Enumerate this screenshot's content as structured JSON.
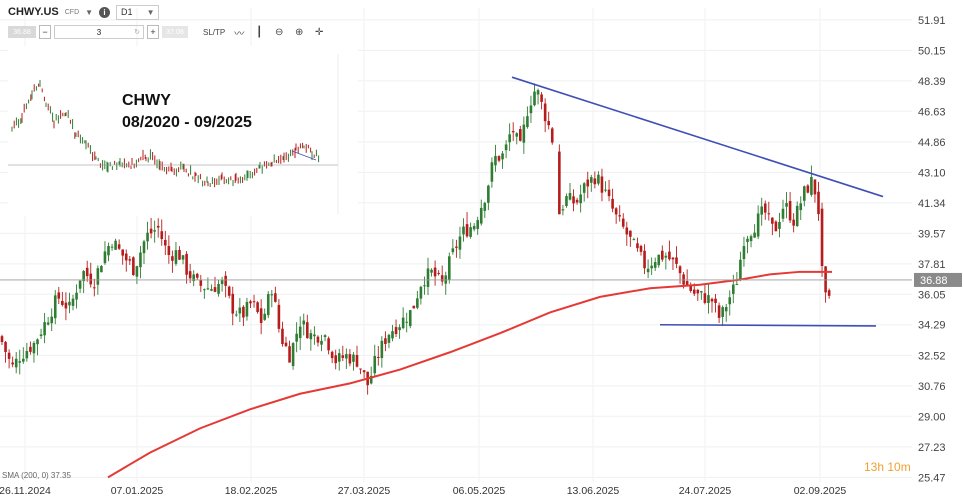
{
  "toolbar": {
    "symbol": "CHWY.US",
    "instrument_type": "CFD",
    "info_icon": "info-icon",
    "timeframe": "D1",
    "sell_price": "36.88",
    "buy_price": "37.08",
    "quantity": "3",
    "minus": "−",
    "plus": "+",
    "sltp_label": "SL/TP",
    "tools": [
      "line-chart-icon",
      "candle-chart-icon",
      "zoom-out-icon",
      "zoom-in-icon",
      "crosshair-icon"
    ]
  },
  "overlay": {
    "title": "CHWY",
    "subtitle": "08/2020 - 09/2025"
  },
  "countdown": "13h 10m",
  "indicator_label": "SMA (200, 0) 37.35",
  "colors": {
    "up": "#2e7d32",
    "down": "#b71c1c",
    "sma": "#e53935",
    "trendline": "#3f4fb5",
    "price_tag": "#8a8a8a",
    "countdown": "#f0a030"
  },
  "chart_data": {
    "type": "candlestick",
    "x_ticks": [
      "26.11.2024",
      "07.01.2025",
      "18.02.2025",
      "27.03.2025",
      "06.05.2025",
      "13.06.2025",
      "24.07.2025",
      "02.09.2025"
    ],
    "y_ticks": [
      25.47,
      27.23,
      29.0,
      30.76,
      32.52,
      34.29,
      36.05,
      37.81,
      39.57,
      41.34,
      43.1,
      44.86,
      46.63,
      48.39,
      50.15,
      51.91
    ],
    "ylim": [
      25.2,
      52.6
    ],
    "last_price": 36.88,
    "close_path": [
      [
        0,
        33.6
      ],
      [
        12,
        31.8
      ],
      [
        20,
        32.5
      ],
      [
        34,
        33.2
      ],
      [
        46,
        34.5
      ],
      [
        58,
        35.9
      ],
      [
        70,
        35.2
      ],
      [
        82,
        37.4
      ],
      [
        94,
        36.8
      ],
      [
        104,
        38.4
      ],
      [
        112,
        39.2
      ],
      [
        120,
        38.5
      ],
      [
        134,
        37.5
      ],
      [
        146,
        39.4
      ],
      [
        158,
        39.9
      ],
      [
        168,
        38.3
      ],
      [
        178,
        38.5
      ],
      [
        188,
        37.3
      ],
      [
        198,
        36.6
      ],
      [
        210,
        36.4
      ],
      [
        222,
        36.7
      ],
      [
        232,
        35.3
      ],
      [
        242,
        34.8
      ],
      [
        252,
        35.6
      ],
      [
        262,
        34.4
      ],
      [
        272,
        36.5
      ],
      [
        280,
        33.7
      ],
      [
        290,
        32.5
      ],
      [
        300,
        34.5
      ],
      [
        312,
        33.6
      ],
      [
        324,
        33.8
      ],
      [
        336,
        32.2
      ],
      [
        346,
        32.5
      ],
      [
        358,
        32.2
      ],
      [
        368,
        30.8
      ],
      [
        376,
        32.3
      ],
      [
        388,
        33.8
      ],
      [
        400,
        34.4
      ],
      [
        412,
        35.1
      ],
      [
        422,
        36.9
      ],
      [
        432,
        37.3
      ],
      [
        442,
        36.6
      ],
      [
        452,
        38.3
      ],
      [
        462,
        39.6
      ],
      [
        474,
        40.1
      ],
      [
        486,
        41.9
      ],
      [
        494,
        43.9
      ],
      [
        504,
        44.1
      ],
      [
        512,
        45.7
      ],
      [
        520,
        44.4
      ],
      [
        528,
        46.9
      ],
      [
        536,
        48.0
      ],
      [
        544,
        46.6
      ],
      [
        552,
        45.2
      ],
      [
        558,
        40.6
      ],
      [
        566,
        41.6
      ],
      [
        576,
        41.3
      ],
      [
        586,
        42.4
      ],
      [
        596,
        42.9
      ],
      [
        606,
        41.8
      ],
      [
        616,
        40.5
      ],
      [
        626,
        39.6
      ],
      [
        636,
        38.6
      ],
      [
        646,
        37.6
      ],
      [
        656,
        38.2
      ],
      [
        666,
        38.3
      ],
      [
        676,
        37.7
      ],
      [
        686,
        36.6
      ],
      [
        696,
        36.0
      ],
      [
        704,
        35.9
      ],
      [
        712,
        35.7
      ],
      [
        720,
        34.6
      ],
      [
        728,
        35.7
      ],
      [
        736,
        36.6
      ],
      [
        744,
        39.3
      ],
      [
        754,
        40.0
      ],
      [
        764,
        40.9
      ],
      [
        774,
        39.6
      ],
      [
        784,
        41.3
      ],
      [
        794,
        40.3
      ],
      [
        804,
        41.9
      ],
      [
        812,
        42.6
      ],
      [
        818,
        41.4
      ],
      [
        823,
        36.3
      ],
      [
        828,
        35.2
      ],
      [
        833,
        36.9
      ]
    ],
    "sma200": [
      [
        108,
        25.47
      ],
      [
        150,
        26.9
      ],
      [
        200,
        28.3
      ],
      [
        250,
        29.4
      ],
      [
        300,
        30.3
      ],
      [
        350,
        30.9
      ],
      [
        400,
        31.7
      ],
      [
        450,
        32.7
      ],
      [
        500,
        33.8
      ],
      [
        550,
        35.0
      ],
      [
        600,
        35.9
      ],
      [
        650,
        36.4
      ],
      [
        700,
        36.6
      ],
      [
        740,
        36.9
      ],
      [
        770,
        37.2
      ],
      [
        800,
        37.35
      ],
      [
        832,
        37.35
      ]
    ],
    "trendline_upper": [
      [
        512,
        48.6
      ],
      [
        883,
        41.7
      ]
    ],
    "trendline_lower": [
      [
        660,
        34.29
      ],
      [
        876,
        34.22
      ]
    ],
    "inset": {
      "title": "CHWY",
      "period": "08/2020 - 09/2025",
      "close_path": [
        [
          0,
          0.55
        ],
        [
          10,
          0.65
        ],
        [
          20,
          0.85
        ],
        [
          28,
          0.95
        ],
        [
          34,
          0.78
        ],
        [
          42,
          0.6
        ],
        [
          54,
          0.7
        ],
        [
          64,
          0.5
        ],
        [
          74,
          0.42
        ],
        [
          84,
          0.3
        ],
        [
          96,
          0.22
        ],
        [
          108,
          0.28
        ],
        [
          120,
          0.25
        ],
        [
          134,
          0.32
        ],
        [
          148,
          0.27
        ],
        [
          160,
          0.2
        ],
        [
          172,
          0.23
        ],
        [
          184,
          0.15
        ],
        [
          196,
          0.1
        ],
        [
          210,
          0.13
        ],
        [
          224,
          0.12
        ],
        [
          236,
          0.17
        ],
        [
          248,
          0.22
        ],
        [
          260,
          0.27
        ],
        [
          272,
          0.3
        ],
        [
          284,
          0.38
        ],
        [
          292,
          0.42
        ],
        [
          300,
          0.35
        ],
        [
          308,
          0.3
        ]
      ]
    }
  }
}
